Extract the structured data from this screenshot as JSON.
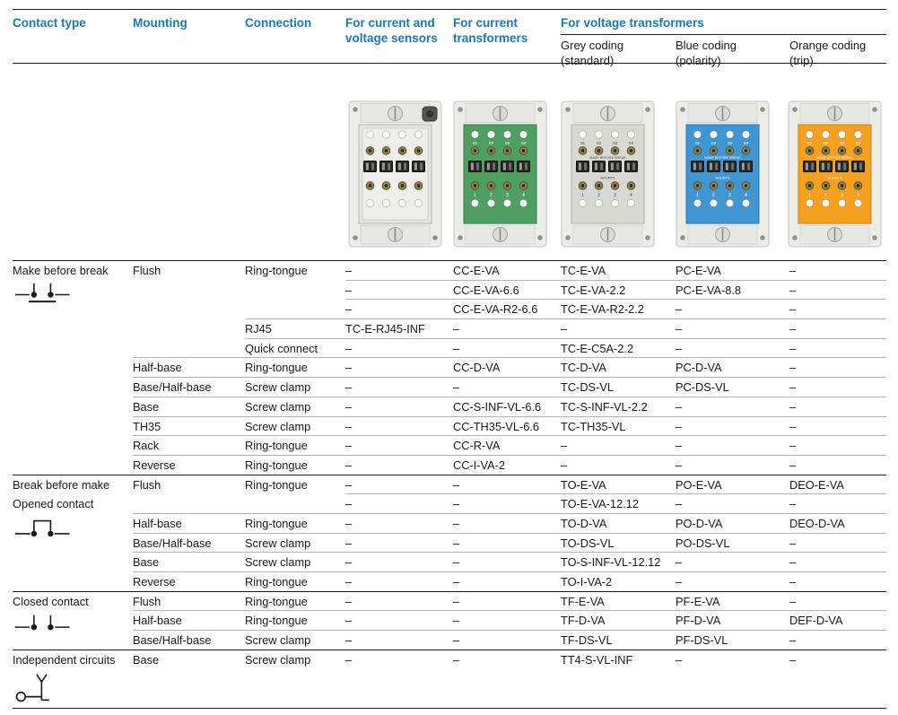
{
  "header": {
    "contact_type": "Contact type",
    "mounting": "Mounting",
    "connection": "Connection",
    "sensors": "For current and voltage sensors",
    "current_transformers": "For current transformers",
    "voltage_transformers": "For voltage transformers",
    "grey_coding": {
      "line1": "Grey coding",
      "line2": "(standard)"
    },
    "blue_coding": {
      "line1": "Blue coding",
      "line2": "(polarity)"
    },
    "orange_coding": {
      "line1": "Orange coding",
      "line2": "(trip)"
    }
  },
  "colors": {
    "header_blue": "#1b78b5",
    "text": "#1a1a1a",
    "section_line": "#1a1a1a",
    "row_line": "#b4b4b0",
    "green_panel": "#4f9e62",
    "grey_panel": "#d9d9d3",
    "blue_panel": "#3f96d2",
    "orange_panel": "#f5a01f"
  },
  "device_text": {
    "top_numbers": [
      "01",
      "02",
      "03",
      "04"
    ],
    "make_label": "MAKE BEFORE BREAK",
    "shunts_label": "SHUNTS",
    "bottom_numbers": [
      "1",
      "2",
      "3",
      "4"
    ]
  },
  "devices": [
    {
      "name": "sensor-test-switch",
      "column": "For current and voltage sensors",
      "panel_color": "#e4e4e0",
      "panel_border": "#b9b9b5",
      "label_color": "#4a4a46",
      "show_numbers": false,
      "show_words": false,
      "has_button": true,
      "inner_frame": true
    },
    {
      "name": "current-transformer-test-switch",
      "column": "For current transformers",
      "panel_color": "#4f9e62",
      "panel_border": "#3b7d4c",
      "label_color": "#ffffff",
      "show_numbers": true,
      "show_words": false,
      "has_button": false,
      "inner_frame": false
    },
    {
      "name": "voltage-grey-test-switch",
      "column": "Grey coding (standard)",
      "panel_color": "#d9d9d3",
      "panel_border": "#b2b2ac",
      "label_color": "#4a4a46",
      "show_numbers": true,
      "show_words": true,
      "has_button": false,
      "inner_frame": false
    },
    {
      "name": "voltage-blue-test-switch",
      "column": "Blue coding (polarity)",
      "panel_color": "#3f96d2",
      "panel_border": "#2e78ab",
      "label_color": "#ffffff",
      "show_numbers": true,
      "show_words": true,
      "has_button": false,
      "inner_frame": false
    },
    {
      "name": "voltage-orange-test-switch",
      "column": "Orange coding (trip)",
      "panel_color": "#f5a01f",
      "panel_border": "#cd8312",
      "label_color": "#ffffff",
      "show_numbers": true,
      "show_words": true,
      "has_button": false,
      "inner_frame": false
    }
  ],
  "table": {
    "columns": [
      "Contact type",
      "Mounting",
      "Connection",
      "For current and voltage sensors",
      "For current transformers",
      "Grey coding (standard)",
      "Blue coding (polarity)",
      "Orange coding (trip)"
    ],
    "rows": [
      {
        "sep": "section",
        "contact": [
          "Make before break"
        ],
        "symbol": "make_before_break",
        "mounting": "Flush",
        "connection": "Ring-tongue",
        "cells": [
          "–",
          "CC-E-VA",
          "TC-E-VA",
          "PC-E-VA",
          "–"
        ]
      },
      {
        "sep": "sub",
        "cells": [
          "–",
          "CC-E-VA-6.6",
          "TC-E-VA-2.2",
          "PC-E-VA-8.8",
          "–"
        ]
      },
      {
        "sep": "sub",
        "cells": [
          "–",
          "CC-E-VA-R2-6.6",
          "TC-E-VA-R2-2.2",
          "–",
          "–"
        ]
      },
      {
        "sep": "connection",
        "connection": "RJ45",
        "cells": [
          "TC-E-RJ45-INF",
          "–",
          "–",
          "–",
          "–"
        ]
      },
      {
        "sep": "connection",
        "connection": "Quick connect",
        "cells": [
          "–",
          "–",
          "TC-E-C5A-2.2",
          "–",
          "–"
        ]
      },
      {
        "sep": "mounting",
        "mounting": "Half-base",
        "connection": "Ring-tongue",
        "cells": [
          "–",
          "CC-D-VA",
          "TC-D-VA",
          "PC-D-VA",
          "–"
        ]
      },
      {
        "sep": "mounting",
        "mounting": "Base/Half-base",
        "connection": "Screw clamp",
        "cells": [
          "–",
          "–",
          "TC-DS-VL",
          "PC-DS-VL",
          "–"
        ]
      },
      {
        "sep": "mounting",
        "mounting": "Base",
        "connection": "Screw clamp",
        "cells": [
          "–",
          "CC-S-INF-VL-6.6",
          "TC-S-INF-VL-2.2",
          "–",
          "–"
        ]
      },
      {
        "sep": "mounting",
        "mounting": "TH35",
        "connection": "Screw clamp",
        "cells": [
          "–",
          "CC-TH35-VL-6.6",
          "TC-TH35-VL",
          "–",
          "–"
        ]
      },
      {
        "sep": "mounting",
        "mounting": "Rack",
        "connection": "Ring-tongue",
        "cells": [
          "–",
          "CC-R-VA",
          "–",
          "–",
          "–"
        ]
      },
      {
        "sep": "mounting",
        "mounting": "Reverse",
        "connection": "Ring-tongue",
        "cells": [
          "–",
          "CC-I-VA-2",
          "–",
          "–",
          "–"
        ]
      },
      {
        "sep": "section",
        "contact": [
          "Break before make",
          "Opened contact"
        ],
        "symbol": "break_before_make",
        "mounting": "Flush",
        "connection": "Ring-tongue",
        "cells": [
          "–",
          "–",
          "TO-E-VA",
          "PO-E-VA",
          "DEO-E-VA"
        ]
      },
      {
        "sep": "sub",
        "cells": [
          "–",
          "–",
          "TO-E-VA-12.12",
          "–",
          "–"
        ]
      },
      {
        "sep": "mounting",
        "mounting": "Half-base",
        "connection": "Ring-tongue",
        "cells": [
          "–",
          "–",
          "TO-D-VA",
          "PO-D-VA",
          "DEO-D-VA"
        ]
      },
      {
        "sep": "mounting",
        "mounting": "Base/Half-base",
        "connection": "Screw clamp",
        "cells": [
          "–",
          "–",
          "TO-DS-VL",
          "PO-DS-VL",
          "–"
        ]
      },
      {
        "sep": "mounting",
        "mounting": "Base",
        "connection": "Screw clamp",
        "cells": [
          "–",
          "–",
          "TO-S-INF-VL-12.12",
          "–",
          "–"
        ]
      },
      {
        "sep": "mounting",
        "mounting": "Reverse",
        "connection": "Ring-tongue",
        "cells": [
          "–",
          "–",
          "TO-I-VA-2",
          "–",
          "–"
        ]
      },
      {
        "sep": "section",
        "contact": [
          "Closed contact"
        ],
        "symbol": "closed_contact",
        "mounting": "Flush",
        "connection": "Ring-tongue",
        "cells": [
          "–",
          "–",
          "TF-E-VA",
          "PF-E-VA",
          "–"
        ]
      },
      {
        "sep": "mounting",
        "mounting": "Half-base",
        "connection": "Ring-tongue",
        "cells": [
          "–",
          "–",
          "TF-D-VA",
          "PF-D-VA",
          "DEF-D-VA"
        ]
      },
      {
        "sep": "mounting",
        "mounting": "Base/Half-base",
        "connection": "Screw clamp",
        "cells": [
          "–",
          "–",
          "TF-DS-VL",
          "PF-DS-VL",
          "–"
        ]
      },
      {
        "sep": "section",
        "tall": true,
        "contact": [
          "Independent circuits"
        ],
        "symbol": "independent_circuits",
        "mounting": "Base",
        "connection": "Screw clamp",
        "cells": [
          "–",
          "–",
          "TT4-S-VL-INF",
          "–",
          "–"
        ]
      }
    ]
  }
}
